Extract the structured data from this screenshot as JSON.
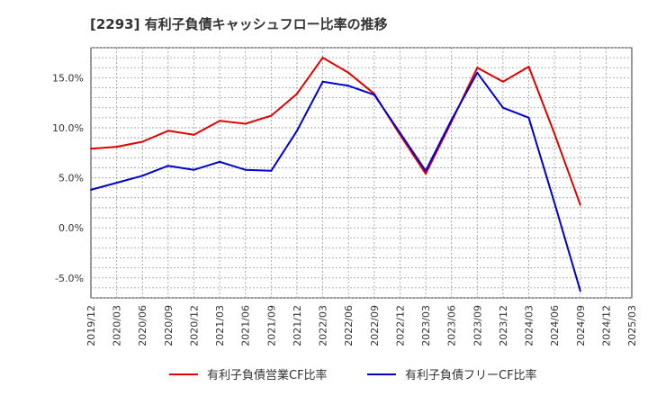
{
  "chart_data": {
    "type": "line",
    "title": "[2293]  有利子負債キャッシュフロー比率の推移",
    "x": [
      "2019/12",
      "2020/03",
      "2020/06",
      "2020/09",
      "2020/12",
      "2021/03",
      "2021/06",
      "2021/09",
      "2021/12",
      "2022/03",
      "2022/06",
      "2022/09",
      "2022/12",
      "2023/03",
      "2023/06",
      "2023/09",
      "2023/12",
      "2024/03",
      "2024/06",
      "2024/09",
      "2024/12",
      "2025/03"
    ],
    "y_ticks": [
      "-5.0%",
      "0.0%",
      "5.0%",
      "10.0%",
      "15.0%"
    ],
    "y_tick_values": [
      -5,
      0,
      5,
      10,
      15
    ],
    "ylim": [
      -7,
      18
    ],
    "grid": true,
    "legend_position": "bottom",
    "series": [
      {
        "name": "有利子負債営業CF比率",
        "color": "#e00000",
        "values": [
          7.9,
          8.1,
          8.6,
          9.7,
          9.3,
          10.7,
          10.4,
          11.2,
          13.4,
          17.0,
          15.5,
          13.4,
          9.3,
          5.4,
          10.6,
          16.0,
          14.6,
          16.1,
          9.4,
          2.3,
          null,
          null
        ]
      },
      {
        "name": "有利子負債フリーCF比率",
        "color": "#0000cc",
        "values": [
          3.8,
          4.5,
          5.2,
          6.2,
          5.8,
          6.6,
          5.8,
          5.7,
          9.7,
          14.6,
          14.2,
          13.3,
          9.5,
          5.7,
          10.8,
          15.5,
          12.0,
          11.0,
          2.5,
          -6.3,
          null,
          null
        ]
      }
    ]
  }
}
